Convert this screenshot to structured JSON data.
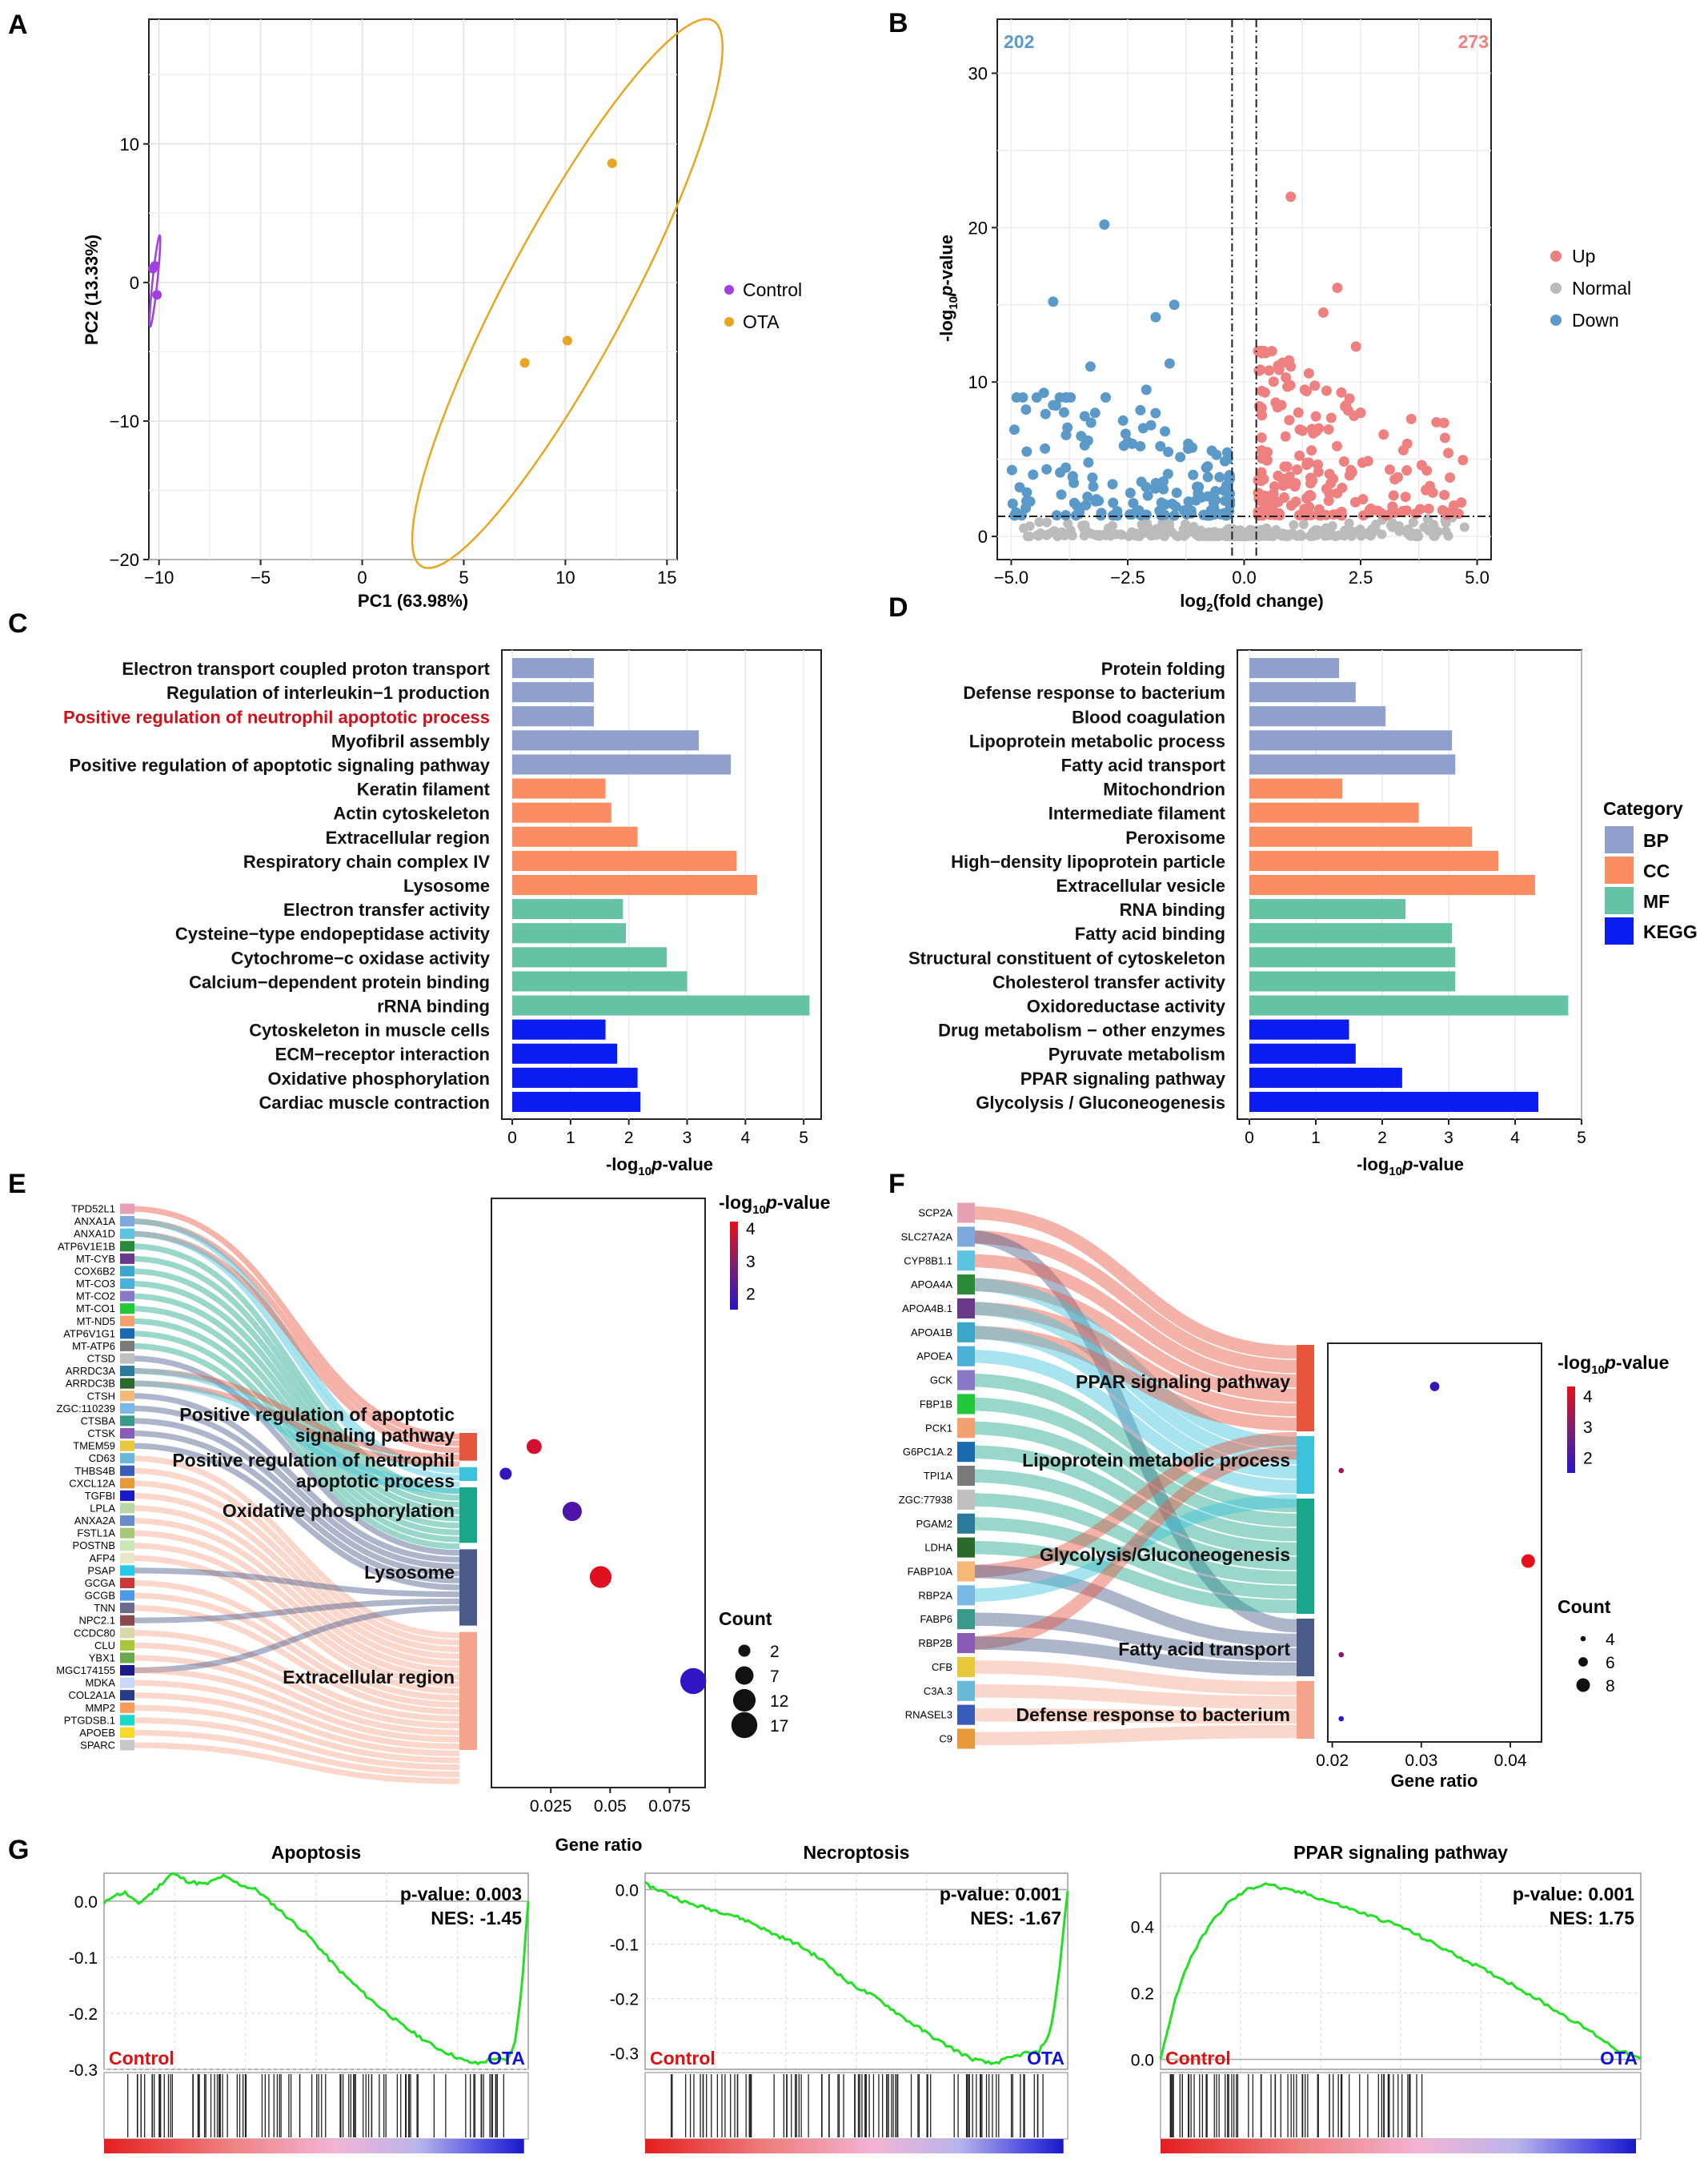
{
  "panel_letters": [
    "A",
    "B",
    "C",
    "D",
    "E",
    "F",
    "G"
  ],
  "chart_data": [
    {
      "panel": "A",
      "type": "scatter",
      "xlabel": "PC1 (63.98%)",
      "ylabel": "PC2 (13.33%)",
      "xlim": [
        -10.5,
        15.5
      ],
      "ylim": [
        -20,
        19
      ],
      "xticks": [
        -10,
        -5,
        0,
        5,
        10,
        15
      ],
      "yticks": [
        -20,
        -10,
        0,
        10
      ],
      "series": [
        {
          "name": "Control",
          "color": "#a040e0",
          "points": [
            [
              -10.3,
              1.0
            ],
            [
              -10.2,
              1.2
            ],
            [
              -10.1,
              -0.9
            ]
          ]
        },
        {
          "name": "OTA",
          "color": "#eaa520",
          "points": [
            [
              12.3,
              8.6
            ],
            [
              10.1,
              -4.2
            ],
            [
              8.0,
              -5.8
            ]
          ]
        }
      ]
    },
    {
      "panel": "B",
      "type": "scatter",
      "xlabel": "log2(fold change)",
      "ylabel": "-log10p-value",
      "xlim": [
        -5.3,
        5.3
      ],
      "ylim": [
        -1.5,
        33.5
      ],
      "xticks": [
        -5.0,
        -2.5,
        0.0,
        2.5,
        5.0
      ],
      "yticks": [
        0,
        10,
        20,
        30
      ],
      "counts": {
        "down": "202",
        "up": "273"
      },
      "legend": [
        {
          "name": "Up",
          "color": "#ef8080"
        },
        {
          "name": "Normal",
          "color": "#bbbbbb"
        },
        {
          "name": "Down",
          "color": "#5b9ac8"
        }
      ],
      "thresholds": {
        "x": [
          -0.26,
          0.26
        ],
        "y": 1.3
      },
      "highlight_points": {
        "down": [
          [
            -3.0,
            20.2
          ],
          [
            -4.1,
            15.2
          ],
          [
            -1.5,
            15.0
          ],
          [
            -1.9,
            14.2
          ],
          [
            -3.3,
            11.0
          ],
          [
            -1.6,
            11.2
          ],
          [
            -3.2,
            8.0
          ],
          [
            -4.3,
            9.3
          ],
          [
            -4.1,
            8.5
          ],
          [
            -2.1,
            9.5
          ],
          [
            -2.6,
            7.5
          ],
          [
            -2.0,
            7.2
          ],
          [
            -1.7,
            6.8
          ],
          [
            -3.5,
            6.5
          ],
          [
            -2.4,
            6.0
          ],
          [
            -1.2,
            6.0
          ]
        ],
        "up": [
          [
            1.0,
            22.0
          ],
          [
            2.0,
            16.1
          ],
          [
            1.7,
            14.5
          ],
          [
            2.4,
            12.3
          ],
          [
            1.0,
            11.0
          ],
          [
            2.5,
            8.0
          ],
          [
            3.5,
            6.0
          ],
          [
            3.9,
            3.0
          ],
          [
            4.5,
            2.0
          ],
          [
            1.3,
            9.5
          ],
          [
            1.6,
            7.0
          ],
          [
            0.8,
            8.5
          ]
        ]
      }
    },
    {
      "panel": "C",
      "type": "bar",
      "xlabel": "-log10p-value",
      "xlim": [
        0,
        5.3
      ],
      "xticks": [
        0,
        1,
        2,
        3,
        4,
        5
      ],
      "categories": [
        "Electron transport coupled proton transport",
        "Regulation of interleukin−1 production",
        "Positive regulation of neutrophil apoptotic process",
        "Myofibril assembly",
        "Positive regulation of apoptotic signaling pathway",
        "Keratin filament",
        "Actin cytoskeleton",
        "Extracellular region",
        "Respiratory chain complex IV",
        "Lysosome",
        "Electron transfer activity",
        "Cysteine−type endopeptidase activity",
        "Cytochrome−c oxidase activity",
        "Calcium−dependent protein binding",
        "rRNA binding",
        "Cytoskeleton in muscle cells",
        "ECM−receptor interaction",
        "Oxidative phosphorylation",
        "Cardiac muscle contraction"
      ],
      "groups": [
        "BP",
        "BP",
        "BP",
        "BP",
        "BP",
        "CC",
        "CC",
        "CC",
        "CC",
        "CC",
        "MF",
        "MF",
        "MF",
        "MF",
        "MF",
        "KEGG",
        "KEGG",
        "KEGG",
        "KEGG"
      ],
      "values": [
        1.4,
        1.4,
        1.4,
        3.2,
        3.75,
        1.6,
        1.7,
        2.15,
        3.85,
        4.2,
        1.9,
        1.95,
        2.65,
        3.0,
        5.1,
        1.6,
        1.8,
        2.15,
        2.2
      ],
      "highlight_index": 2,
      "highlight_color": "#d0101a"
    },
    {
      "panel": "D",
      "type": "bar",
      "xlabel": "-log10p-value",
      "xlim": [
        0,
        5.0
      ],
      "xticks": [
        0,
        1,
        2,
        3,
        4,
        5
      ],
      "categories": [
        "Protein folding",
        "Defense response to bacterium",
        "Blood coagulation",
        "Lipoprotein metabolic process",
        "Fatty acid transport",
        "Mitochondrion",
        "Intermediate filament",
        "Peroxisome",
        "High−density lipoprotein particle",
        "Extracellular vesicle",
        "RNA binding",
        "Fatty acid binding",
        "Structural constituent of cytoskeleton",
        "Cholesterol transfer activity",
        "Oxidoreductase activity",
        "Drug metabolism − other enzymes",
        "Pyruvate metabolism",
        "PPAR signaling pathway",
        "Glycolysis / Gluconeogenesis"
      ],
      "groups": [
        "BP",
        "BP",
        "BP",
        "BP",
        "BP",
        "CC",
        "CC",
        "CC",
        "CC",
        "CC",
        "MF",
        "MF",
        "MF",
        "MF",
        "MF",
        "KEGG",
        "KEGG",
        "KEGG",
        "KEGG"
      ],
      "values": [
        1.35,
        1.6,
        2.05,
        3.05,
        3.1,
        1.4,
        2.55,
        3.35,
        3.75,
        4.3,
        2.35,
        3.05,
        3.1,
        3.1,
        4.8,
        1.5,
        1.6,
        2.3,
        4.35
      ],
      "legend_title": "Category",
      "legend": [
        {
          "name": "BP",
          "color": "#8fa0cc"
        },
        {
          "name": "CC",
          "color": "#fa8d62"
        },
        {
          "name": "MF",
          "color": "#65c2a4"
        },
        {
          "name": "KEGG",
          "color": "#0a1cf0"
        }
      ]
    },
    {
      "panel": "E",
      "type": "scatter",
      "xlabel": "Gene ratio",
      "xlim": [
        0.0,
        0.09
      ],
      "xticks": [
        0.025,
        0.05,
        0.075
      ],
      "genes": [
        "TPD52L1",
        "ANXA1A",
        "ANXA1D",
        "ATP6V1E1B",
        "MT-CYB",
        "COX6B2",
        "MT-CO3",
        "MT-CO2",
        "MT-CO1",
        "MT-ND5",
        "ATP6V1G1",
        "MT-ATP6",
        "CTSD",
        "ARRDC3A",
        "ARRDC3B",
        "CTSH",
        "ZGC:110239",
        "CTSBA",
        "CTSK",
        "TMEM59",
        "CD63",
        "THBS4B",
        "CXCL12A",
        "TGFBI",
        "LPLA",
        "ANXA2A",
        "FSTL1A",
        "POSTNB",
        "AFP4",
        "PSAP",
        "GCGA",
        "GCGB",
        "TNN",
        "NPC2.1",
        "CCDC80",
        "CLU",
        "YBX1",
        "MGC174155",
        "MDKA",
        "COL2A1A",
        "MMP2",
        "PTGDSB.1",
        "APOEB",
        "SPARC"
      ],
      "terms": [
        "Positive regulation of apoptotic signaling pathway",
        "Positive regulation of neutrophil apoptotic process",
        "Oxidative phosphorylation",
        "Lysosome",
        "Extracellular region"
      ],
      "term_colors": [
        "#e8553d",
        "#3cc3db",
        "#1aa68a",
        "#4a5b8a",
        "#f4a48c"
      ],
      "gene_ratio": [
        0.018,
        0.006,
        0.034,
        0.046,
        0.085
      ],
      "pvalue": [
        3.9,
        1.6,
        2.0,
        4.1,
        1.6
      ],
      "count": [
        4,
        2,
        8,
        11,
        17
      ],
      "color_legend_title": "-log10p-value",
      "color_ticks": [
        2,
        3,
        4
      ],
      "size_legend_title": "Count",
      "size_ticks": [
        2,
        7,
        12,
        17
      ]
    },
    {
      "panel": "F",
      "type": "scatter",
      "xlabel": "Gene ratio",
      "xlim": [
        0.0195,
        0.0435
      ],
      "xticks": [
        0.02,
        0.03,
        0.04
      ],
      "genes": [
        "SCP2A",
        "SLC27A2A",
        "CYP8B1.1",
        "APOA4A",
        "APOA4B.1",
        "APOA1B",
        "APOEA",
        "GCK",
        "FBP1B",
        "PCK1",
        "G6PC1A.2",
        "TPI1A",
        "ZGC:77938",
        "PGAM2",
        "LDHA",
        "FABP10A",
        "RBP2A",
        "FABP6",
        "RBP2B",
        "CFB",
        "C3A.3",
        "RNASEL3",
        "C9"
      ],
      "terms": [
        "PPAR signaling pathway",
        "Lipoprotein metabolic process",
        "Glycolysis/Gluconeogenesis",
        "Fatty acid transport",
        "Defense response to bacterium"
      ],
      "term_colors": [
        "#e8553d",
        "#3cc3db",
        "#1aa68a",
        "#4a5b8a",
        "#f4a48c"
      ],
      "gene_ratio": [
        0.0315,
        0.021,
        0.042,
        0.021,
        0.021
      ],
      "pvalue": [
        1.7,
        3.3,
        4.3,
        2.9,
        1.5
      ],
      "count": [
        6,
        4,
        8,
        4,
        4
      ],
      "color_legend_title": "-log10p-value",
      "color_ticks": [
        2,
        3,
        4
      ],
      "size_legend_title": "Count",
      "size_ticks": [
        4,
        6,
        8
      ]
    },
    {
      "panel": "G",
      "type": "line",
      "plots": [
        {
          "title": "Apoptosis",
          "pvalue": "0.003",
          "nes": "-1.45",
          "ylim": [
            -0.3,
            0.05
          ],
          "yticks": [
            "0.0",
            "-0.1",
            "-0.2",
            "-0.3"
          ],
          "ytick_values": [
            0.0,
            -0.1,
            -0.2,
            -0.3
          ],
          "x": [
            0,
            0.02,
            0.05,
            0.08,
            0.12,
            0.16,
            0.2,
            0.24,
            0.28,
            0.32,
            0.36,
            0.42,
            0.48,
            0.55,
            0.62,
            0.7,
            0.78,
            0.85,
            0.88,
            0.92,
            0.95,
            0.97,
            0.985,
            1.0
          ],
          "y": [
            -0.005,
            0.01,
            0.015,
            -0.005,
            0.02,
            0.05,
            0.035,
            0.03,
            0.045,
            0.03,
            0.02,
            -0.02,
            -0.06,
            -0.12,
            -0.17,
            -0.22,
            -0.26,
            -0.285,
            -0.29,
            -0.28,
            -0.285,
            -0.25,
            -0.15,
            0.0
          ]
        },
        {
          "title": "Necroptosis",
          "pvalue": "0.001",
          "nes": "-1.67",
          "ylim": [
            -0.33,
            0.03
          ],
          "yticks": [
            "0.0",
            "-0.1",
            "-0.2",
            "-0.3"
          ],
          "ytick_values": [
            0.0,
            -0.1,
            -0.2,
            -0.3
          ],
          "x": [
            0,
            0.03,
            0.06,
            0.1,
            0.15,
            0.2,
            0.25,
            0.3,
            0.36,
            0.42,
            0.48,
            0.55,
            0.62,
            0.7,
            0.77,
            0.82,
            0.86,
            0.9,
            0.93,
            0.96,
            0.98,
            1.0
          ],
          "y": [
            0.01,
            0.0,
            -0.01,
            -0.025,
            -0.035,
            -0.045,
            -0.06,
            -0.08,
            -0.1,
            -0.13,
            -0.17,
            -0.2,
            -0.24,
            -0.28,
            -0.31,
            -0.32,
            -0.31,
            -0.3,
            -0.3,
            -0.26,
            -0.15,
            0.0
          ]
        },
        {
          "title": "PPAR signaling pathway",
          "pvalue": "0.001",
          "nes": "1.75",
          "ylim": [
            -0.03,
            0.56
          ],
          "yticks": [
            "0.0",
            "0.2",
            "0.4"
          ],
          "ytick_values": [
            0.0,
            0.2,
            0.4
          ],
          "x": [
            0,
            0.01,
            0.03,
            0.06,
            0.1,
            0.14,
            0.18,
            0.22,
            0.26,
            0.3,
            0.36,
            0.42,
            0.5,
            0.58,
            0.66,
            0.74,
            0.82,
            0.9,
            0.95,
            1.0
          ],
          "y": [
            0.0,
            0.06,
            0.18,
            0.3,
            0.4,
            0.47,
            0.51,
            0.53,
            0.51,
            0.5,
            0.47,
            0.44,
            0.4,
            0.34,
            0.28,
            0.22,
            0.15,
            0.08,
            0.03,
            0.0
          ]
        }
      ],
      "left_label": "Control",
      "right_label": "OTA",
      "line_color": "#22e022"
    }
  ]
}
